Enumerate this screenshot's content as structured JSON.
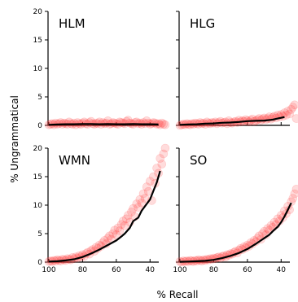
{
  "chart_data": {
    "type": "scatter",
    "xlabel": "% Recall",
    "ylabel": "% Ungrammatical",
    "xlim": [
      100,
      30
    ],
    "ylim": [
      0,
      20
    ],
    "xticks": [
      100,
      80,
      60,
      40
    ],
    "yticks": [
      0,
      5,
      10,
      15,
      20
    ],
    "point_color": "#ff3b3b",
    "line_color": "#000000",
    "panels": [
      {
        "name": "HLM",
        "points_x": [
          100,
          99,
          98,
          97,
          96,
          95,
          94,
          93,
          92,
          91,
          90,
          89,
          88,
          87,
          86,
          85,
          84,
          83,
          82,
          81,
          80,
          79,
          78,
          77,
          76,
          75,
          74,
          73,
          72,
          71,
          70,
          69,
          68,
          67,
          66,
          65,
          64,
          63,
          62,
          61,
          60,
          59,
          58,
          57,
          56,
          55,
          54,
          53,
          52,
          51,
          50,
          49,
          48,
          47,
          46,
          45,
          44,
          43,
          42,
          41,
          40,
          39,
          38,
          37,
          36,
          35,
          34,
          33,
          32,
          31
        ],
        "points_y": [
          0.1,
          0.2,
          0.3,
          0.1,
          0.4,
          0.2,
          0.3,
          0.5,
          0.2,
          0.4,
          0.3,
          0.2,
          0.6,
          0.3,
          0.2,
          0.4,
          0.1,
          0.5,
          0.3,
          0.2,
          0.4,
          0.6,
          0.3,
          0.2,
          0.5,
          0.7,
          0.3,
          0.2,
          0.4,
          0.3,
          0.6,
          0.2,
          0.5,
          0.3,
          0.4,
          0.8,
          0.2,
          0.3,
          0.5,
          0.4,
          0.3,
          0.2,
          0.6,
          0.5,
          0.4,
          0.3,
          0.7,
          0.9,
          0.4,
          0.3,
          0.2,
          0.5,
          0.6,
          0.3,
          0.4,
          0.2,
          0.5,
          0.3,
          0.8,
          0.4,
          0.2,
          0.3,
          0.5,
          0.4,
          0.2,
          0.3,
          0.1,
          0.4,
          0.2,
          0.1
        ],
        "line_x": [
          100,
          95,
          90,
          85,
          80,
          75,
          70,
          65,
          60,
          55,
          50,
          45,
          40,
          35
        ],
        "line_y": [
          0.1,
          0.15,
          0.2,
          0.2,
          0.25,
          0.25,
          0.2,
          0.25,
          0.2,
          0.2,
          0.25,
          0.2,
          0.2,
          0.15
        ]
      },
      {
        "name": "HLG",
        "points_x": [
          100,
          99,
          98,
          97,
          96,
          95,
          94,
          93,
          92,
          91,
          90,
          89,
          88,
          87,
          86,
          85,
          84,
          83,
          82,
          81,
          80,
          79,
          78,
          77,
          76,
          75,
          74,
          73,
          72,
          71,
          70,
          69,
          68,
          67,
          66,
          65,
          64,
          63,
          62,
          61,
          60,
          59,
          58,
          57,
          56,
          55,
          54,
          53,
          52,
          51,
          50,
          49,
          48,
          47,
          46,
          45,
          44,
          43,
          42,
          41,
          40,
          39,
          38,
          37,
          36,
          35,
          34,
          33,
          32,
          31
        ],
        "points_y": [
          0.0,
          0.1,
          0.2,
          0.1,
          0.3,
          0.2,
          0.1,
          0.3,
          0.2,
          0.4,
          0.3,
          0.2,
          0.5,
          0.3,
          0.4,
          0.2,
          0.6,
          0.4,
          0.3,
          0.5,
          0.4,
          0.6,
          0.3,
          0.5,
          0.7,
          0.4,
          0.5,
          0.6,
          0.3,
          0.8,
          0.5,
          0.4,
          0.6,
          0.7,
          0.5,
          0.9,
          0.6,
          0.8,
          0.7,
          1.0,
          0.8,
          0.6,
          0.9,
          1.1,
          0.7,
          0.8,
          1.0,
          1.2,
          0.9,
          1.1,
          1.3,
          1.0,
          1.2,
          1.5,
          1.1,
          1.4,
          1.6,
          1.3,
          1.8,
          1.5,
          1.9,
          1.6,
          2.2,
          1.8,
          2.5,
          2.0,
          2.8,
          3.2,
          3.6,
          1.2
        ],
        "line_x": [
          100,
          95,
          90,
          85,
          80,
          75,
          70,
          65,
          60,
          55,
          50,
          45,
          42,
          38
        ],
        "line_y": [
          0.1,
          0.15,
          0.2,
          0.3,
          0.35,
          0.45,
          0.5,
          0.6,
          0.75,
          0.8,
          0.85,
          1.0,
          1.2,
          1.45
        ]
      },
      {
        "name": "WMN",
        "points_x": [
          100,
          99,
          98,
          97,
          96,
          95,
          94,
          93,
          92,
          91,
          90,
          89,
          88,
          87,
          86,
          85,
          84,
          83,
          82,
          81,
          80,
          79,
          78,
          77,
          76,
          75,
          74,
          73,
          72,
          71,
          70,
          69,
          68,
          67,
          66,
          65,
          64,
          63,
          62,
          61,
          60,
          59,
          58,
          57,
          56,
          55,
          54,
          53,
          52,
          51,
          50,
          49,
          48,
          47,
          46,
          45,
          44,
          43,
          42,
          41,
          40,
          39,
          38,
          37,
          36,
          35,
          34,
          33,
          32,
          31
        ],
        "points_y": [
          0.1,
          0.2,
          0.1,
          0.3,
          0.2,
          0.4,
          0.3,
          0.2,
          0.5,
          0.4,
          0.3,
          0.6,
          0.5,
          0.4,
          0.8,
          0.6,
          0.9,
          0.7,
          1.1,
          0.9,
          1.3,
          1.0,
          1.5,
          1.7,
          1.4,
          2.0,
          2.2,
          1.9,
          2.6,
          2.4,
          3.0,
          2.8,
          3.4,
          3.8,
          3.2,
          4.2,
          4.6,
          4.0,
          5.0,
          5.6,
          4.8,
          6.0,
          5.5,
          6.6,
          7.2,
          6.4,
          7.6,
          8.2,
          7.0,
          8.8,
          9.4,
          8.0,
          10.2,
          9.6,
          11.0,
          10.4,
          12.0,
          11.2,
          13.2,
          12.4,
          14.2,
          10.8,
          15.0,
          13.8,
          16.5,
          15.6,
          18.2,
          17.2,
          19.0,
          20.0
        ],
        "line_x": [
          100,
          95,
          90,
          85,
          80,
          75,
          70,
          65,
          60,
          57,
          55,
          52,
          50,
          47,
          45,
          42,
          40,
          38,
          36,
          34
        ],
        "line_y": [
          0.1,
          0.15,
          0.3,
          0.5,
          0.9,
          1.5,
          2.2,
          3.0,
          3.8,
          4.5,
          5.0,
          6.0,
          7.2,
          7.8,
          9.0,
          10.2,
          11.0,
          12.5,
          14.0,
          16.0
        ]
      },
      {
        "name": "SO",
        "points_x": [
          100,
          99,
          98,
          97,
          96,
          95,
          94,
          93,
          92,
          91,
          90,
          89,
          88,
          87,
          86,
          85,
          84,
          83,
          82,
          81,
          80,
          79,
          78,
          77,
          76,
          75,
          74,
          73,
          72,
          71,
          70,
          69,
          68,
          67,
          66,
          65,
          64,
          63,
          62,
          61,
          60,
          59,
          58,
          57,
          56,
          55,
          54,
          53,
          52,
          51,
          50,
          49,
          48,
          47,
          46,
          45,
          44,
          43,
          42,
          41,
          40,
          39,
          38,
          37,
          36,
          35,
          34,
          33,
          32,
          31
        ],
        "points_y": [
          0.1,
          0.0,
          0.2,
          0.1,
          0.2,
          0.1,
          0.3,
          0.2,
          0.1,
          0.3,
          0.2,
          0.4,
          0.3,
          0.2,
          0.4,
          0.3,
          0.5,
          0.4,
          0.6,
          0.5,
          0.7,
          0.6,
          0.8,
          0.9,
          0.7,
          1.0,
          1.1,
          0.9,
          1.3,
          1.2,
          1.5,
          1.4,
          1.7,
          1.9,
          1.6,
          2.1,
          2.4,
          2.2,
          2.7,
          2.5,
          3.0,
          2.8,
          3.4,
          3.2,
          3.8,
          3.6,
          4.2,
          4.6,
          4.0,
          5.0,
          5.4,
          4.8,
          5.9,
          5.6,
          6.4,
          6.1,
          7.0,
          6.6,
          7.6,
          7.2,
          8.2,
          7.8,
          9.0,
          8.5,
          9.8,
          9.2,
          10.6,
          11.2,
          12.0,
          12.8
        ],
        "line_x": [
          100,
          95,
          90,
          85,
          80,
          75,
          70,
          65,
          60,
          55,
          52,
          50,
          47,
          45,
          42,
          40,
          38,
          36,
          34
        ],
        "line_y": [
          0.05,
          0.1,
          0.15,
          0.25,
          0.4,
          0.7,
          1.1,
          1.6,
          2.3,
          3.2,
          3.8,
          4.2,
          4.8,
          5.4,
          6.2,
          7.0,
          8.0,
          9.2,
          10.4
        ]
      }
    ]
  }
}
